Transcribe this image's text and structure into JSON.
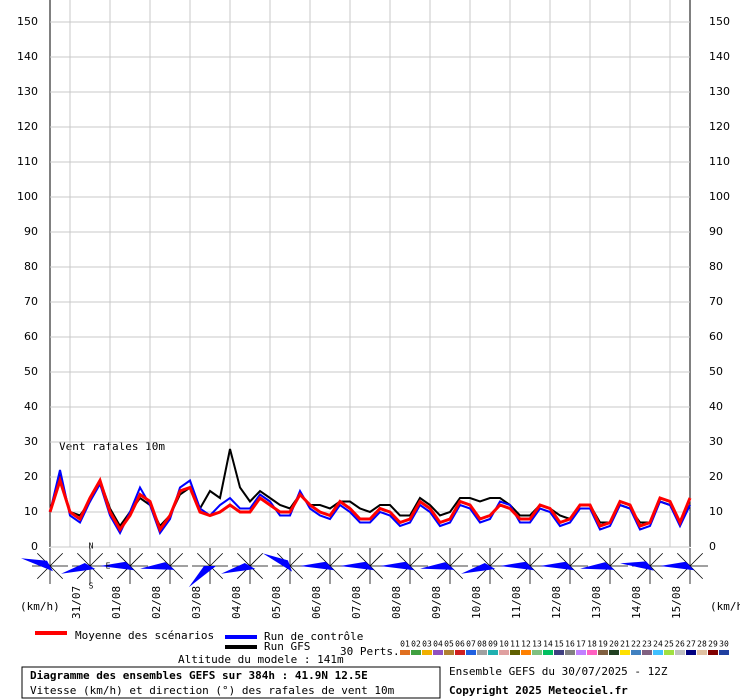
{
  "chart_data": {
    "type": "line",
    "annotation": "Vent rafales 10m",
    "y_unit_left": "(km/h)",
    "y_unit_right": "(km/h)",
    "x": [
      0,
      6,
      12,
      18,
      24,
      30,
      36,
      42,
      48,
      54,
      60,
      66,
      72,
      78,
      84,
      90,
      96,
      102,
      108,
      114,
      120,
      126,
      132,
      138,
      144,
      150,
      156,
      162,
      168,
      174,
      180,
      186,
      192,
      198,
      204,
      210,
      216,
      222,
      228,
      234,
      240,
      246,
      252,
      258,
      264,
      270,
      276,
      282,
      288,
      294,
      300,
      306,
      312,
      318,
      324,
      330,
      336,
      342,
      348,
      354,
      360,
      366,
      372,
      378,
      384
    ],
    "xlim": [
      0,
      384
    ],
    "xticks": [
      {
        "value": 12,
        "label": "31/07"
      },
      {
        "value": 36,
        "label": "01/08"
      },
      {
        "value": 60,
        "label": "02/08"
      },
      {
        "value": 84,
        "label": "03/08"
      },
      {
        "value": 108,
        "label": "04/08"
      },
      {
        "value": 132,
        "label": "05/08"
      },
      {
        "value": 156,
        "label": "06/08"
      },
      {
        "value": 180,
        "label": "07/08"
      },
      {
        "value": 204,
        "label": "08/08"
      },
      {
        "value": 228,
        "label": "09/08"
      },
      {
        "value": 252,
        "label": "10/08"
      },
      {
        "value": 276,
        "label": "11/08"
      },
      {
        "value": 300,
        "label": "12/08"
      },
      {
        "value": 324,
        "label": "13/08"
      },
      {
        "value": 348,
        "label": "14/08"
      },
      {
        "value": 372,
        "label": "15/08"
      }
    ],
    "ylim": [
      0,
      150
    ],
    "yticks": [
      0,
      10,
      20,
      30,
      40,
      50,
      60,
      70,
      80,
      90,
      100,
      110,
      120,
      130,
      140,
      150
    ],
    "grid": true,
    "series": [
      {
        "name": "Moyenne des scénarios",
        "color": "#ff0000",
        "values": [
          10,
          19,
          10,
          8,
          14,
          19,
          10,
          5,
          9,
          15,
          13,
          5,
          9,
          16,
          17,
          10,
          9,
          10,
          12,
          10,
          10,
          14,
          12,
          10,
          10,
          15,
          12,
          10,
          9,
          13,
          11,
          8,
          8,
          11,
          10,
          7,
          8,
          13,
          11,
          7,
          8,
          13,
          12,
          8,
          9,
          12,
          11,
          8,
          8,
          12,
          11,
          7,
          8,
          12,
          12,
          6,
          7,
          13,
          12,
          6,
          7,
          14,
          13,
          7,
          14
        ]
      },
      {
        "name": "Run de contrôle",
        "color": "#0000ff",
        "values": [
          10,
          22,
          9,
          7,
          13,
          18,
          9,
          4,
          10,
          17,
          12,
          4,
          8,
          17,
          19,
          11,
          9,
          12,
          14,
          11,
          11,
          15,
          13,
          9,
          9,
          16,
          11,
          9,
          8,
          12,
          10,
          7,
          7,
          10,
          9,
          6,
          7,
          12,
          10,
          6,
          7,
          12,
          11,
          7,
          8,
          13,
          12,
          7,
          7,
          11,
          10,
          6,
          7,
          11,
          11,
          5,
          6,
          12,
          11,
          5,
          6,
          13,
          12,
          6,
          12
        ]
      },
      {
        "name": "Run GFS",
        "color": "#000000",
        "values": [
          10,
          20,
          10,
          9,
          13,
          19,
          11,
          6,
          10,
          14,
          12,
          6,
          9,
          15,
          17,
          11,
          16,
          14,
          28,
          17,
          13,
          16,
          14,
          12,
          11,
          15,
          12,
          12,
          11,
          13,
          13,
          11,
          10,
          12,
          12,
          9,
          9,
          14,
          12,
          9,
          10,
          14,
          14,
          13,
          14,
          14,
          12,
          9,
          9,
          12,
          11,
          9,
          8,
          12,
          12,
          7,
          7,
          12,
          11,
          7,
          7,
          13,
          12,
          7,
          12
        ]
      }
    ],
    "direction_x": [
      0,
      24,
      48,
      72,
      96,
      120,
      144,
      168,
      192,
      216,
      240,
      264,
      288,
      312,
      336,
      360,
      384
    ],
    "directions": [
      60,
      30,
      45,
      40,
      0,
      30,
      70,
      45,
      45,
      45,
      40,
      30,
      45,
      45,
      40,
      50,
      45
    ],
    "compass": [
      "N",
      "E",
      "S"
    ],
    "perturbations_label": "30 Perts.",
    "perturbations": [
      {
        "name": "01",
        "color": "#e07020"
      },
      {
        "name": "02",
        "color": "#40a040"
      },
      {
        "name": "03",
        "color": "#f0b000"
      },
      {
        "name": "04",
        "color": "#9050c0"
      },
      {
        "name": "05",
        "color": "#b08030"
      },
      {
        "name": "06",
        "color": "#d02020"
      },
      {
        "name": "07",
        "color": "#2060e0"
      },
      {
        "name": "08",
        "color": "#a0a0a0"
      },
      {
        "name": "09",
        "color": "#20b0b0"
      },
      {
        "name": "10",
        "color": "#e0a0a0"
      },
      {
        "name": "11",
        "color": "#606000"
      },
      {
        "name": "12",
        "color": "#ff8000"
      },
      {
        "name": "13",
        "color": "#80c080"
      },
      {
        "name": "14",
        "color": "#00c060"
      },
      {
        "name": "15",
        "color": "#404080"
      },
      {
        "name": "16",
        "color": "#808080"
      },
      {
        "name": "17",
        "color": "#c080ff"
      },
      {
        "name": "18",
        "color": "#ff60c0"
      },
      {
        "name": "19",
        "color": "#806040"
      },
      {
        "name": "20",
        "color": "#204020"
      },
      {
        "name": "21",
        "color": "#ffe000"
      },
      {
        "name": "22",
        "color": "#4080c0"
      },
      {
        "name": "23",
        "color": "#806080"
      },
      {
        "name": "24",
        "color": "#40c0ff"
      },
      {
        "name": "25",
        "color": "#a0e040"
      },
      {
        "name": "26",
        "color": "#c0c0c0"
      },
      {
        "name": "27",
        "color": "#000080"
      },
      {
        "name": "28",
        "color": "#e0c0a0"
      },
      {
        "name": "29",
        "color": "#800000"
      },
      {
        "name": "30",
        "color": "#2040a0"
      }
    ],
    "altitude": "Altitude du modele : 141m",
    "title": "Diagramme des ensembles GEFS sur 384h : 41.9N 12.5E",
    "subtitle": "Vitesse (km/h) et direction (°) des rafales de vent 10m",
    "run_info": "Ensemble GEFS du 30/07/2025 - 12Z",
    "copyright": "Copyright 2025 Meteociel.fr"
  }
}
